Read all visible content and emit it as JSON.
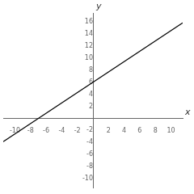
{
  "chart_data": {
    "type": "line",
    "xlabel": "x",
    "ylabel": "y",
    "x": [
      -11.5,
      11.5
    ],
    "series": [
      {
        "color": "#000000",
        "values": [
          -3.8571428555,
          15.8571428555
        ]
      }
    ],
    "xlim": [
      -11.5,
      11.5
    ],
    "xticks": [
      -10,
      -8,
      -6,
      -4,
      -2,
      2,
      4,
      6,
      8,
      10
    ],
    "ylim": [
      -11.5,
      17.5
    ],
    "yticks": [
      -10,
      -8,
      -6,
      -4,
      -2,
      2,
      4,
      6,
      8,
      10,
      12,
      14,
      16
    ],
    "grid": false
  }
}
